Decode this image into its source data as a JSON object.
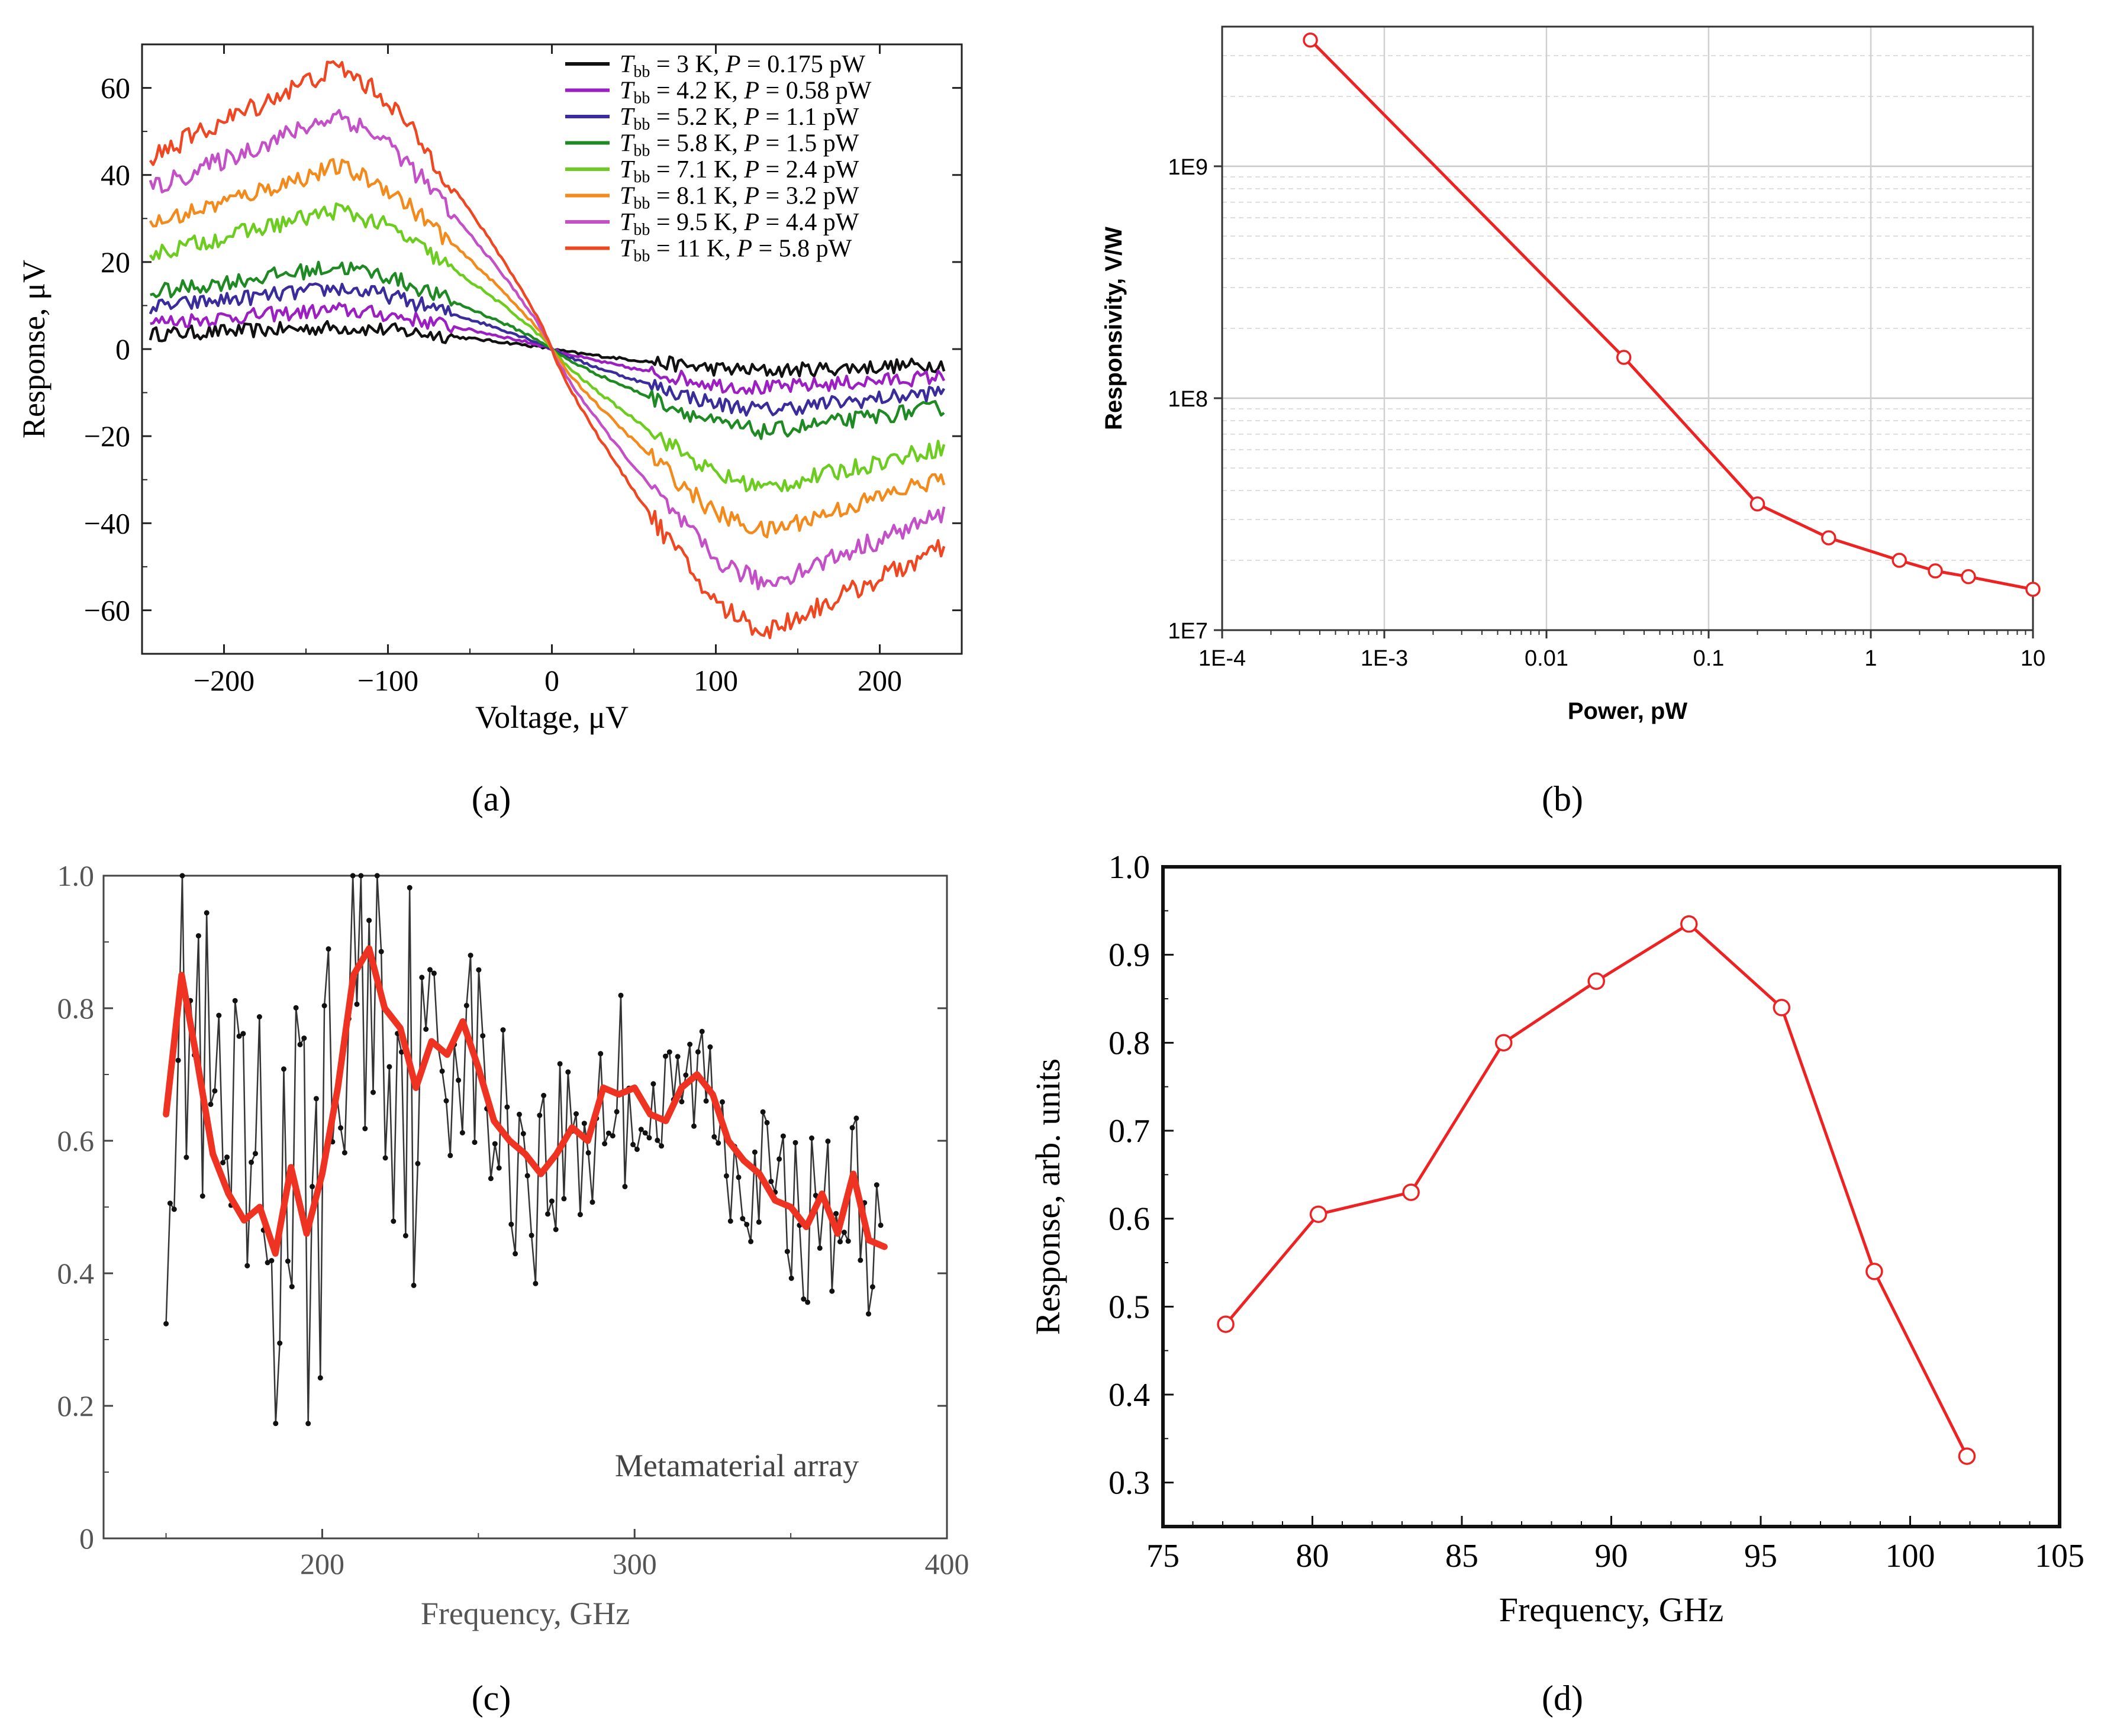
{
  "panel_labels": [
    "(a)",
    "(b)",
    "(c)",
    "(d)"
  ],
  "chart_data": [
    {
      "panel": "a",
      "type": "line",
      "xlabel": "Voltage, μV",
      "ylabel": "Response, μV",
      "xlim": [
        -250,
        250
      ],
      "ylim": [
        -70,
        70
      ],
      "xticks": [
        -200,
        -100,
        0,
        100,
        200
      ],
      "yticks": [
        -60,
        -40,
        -20,
        0,
        20,
        40,
        60
      ],
      "xtick_labels": [
        "−200",
        "−100",
        "0",
        "100",
        "200"
      ],
      "ytick_labels": [
        "−60",
        "−40",
        "−20",
        "0",
        "20",
        "40",
        "60"
      ],
      "legend_position": "top-right",
      "series": [
        {
          "name": "T_bb = 3 K, P = 0.175 pW",
          "tbb": "3 K",
          "power": "0.175 pW",
          "color": "#111111",
          "amplitude": 5
        },
        {
          "name": "T_bb = 4.2 K, P = 0.58 pW",
          "tbb": "4.2 K",
          "power": "0.58 pW",
          "color": "#9b1fc1",
          "amplitude": 9
        },
        {
          "name": "T_bb = 5.2 K, P = 1.1 pW",
          "tbb": "5.2 K",
          "power": "1.1 pW",
          "color": "#3b2c9c",
          "amplitude": 14
        },
        {
          "name": "T_bb = 5.8 K, P = 1.5 pW",
          "tbb": "5.8 K",
          "power": "1.5 pW",
          "color": "#1f8a23",
          "amplitude": 19
        },
        {
          "name": "T_bb = 7.1 K, P = 2.4 pW",
          "tbb": "7.1 K",
          "power": "2.4 pW",
          "color": "#6ccc1f",
          "amplitude": 32
        },
        {
          "name": "T_bb = 8.1 K, P = 3.2 pW",
          "tbb": "8.1 K",
          "power": "3.2 pW",
          "color": "#f28a1c",
          "amplitude": 42
        },
        {
          "name": "T_bb = 9.5 K, P = 4.4 pW",
          "tbb": "9.5 K",
          "power": "4.4 pW",
          "color": "#c450c8",
          "amplitude": 54
        },
        {
          "name": "T_bb = 11 K, P = 5.8 pW",
          "tbb": "11 K",
          "power": "5.8 pW",
          "color": "#ee4722",
          "amplitude": 65
        }
      ]
    },
    {
      "panel": "b",
      "type": "line",
      "xlabel": "Power, pW",
      "ylabel": "Responsivity, V/W",
      "xscale": "log",
      "yscale": "log",
      "xlim": [
        0.0001,
        10
      ],
      "ylim": [
        10000000,
        4000000000
      ],
      "xticks": [
        0.0001,
        0.001,
        0.01,
        0.1,
        1,
        10
      ],
      "xtick_labels": [
        "1E-4",
        "1E-3",
        "0.01",
        "0.1",
        "1",
        "10"
      ],
      "yticks": [
        10000000,
        100000000,
        1000000000
      ],
      "ytick_labels": [
        "1E7",
        "1E8",
        "1E9"
      ],
      "grid": true,
      "color": "#ee2222",
      "x": [
        0.00035,
        0.03,
        0.2,
        0.55,
        1.5,
        2.5,
        4,
        10
      ],
      "y": [
        3500000000,
        150000000,
        35000000,
        25000000,
        20000000,
        18000000,
        17000000,
        15000000
      ]
    },
    {
      "panel": "c",
      "type": "line",
      "xlabel": "Frequency, GHz",
      "ylabel": "",
      "xlim": [
        130,
        400
      ],
      "ylim": [
        0,
        1.0
      ],
      "xticks": [
        200,
        300,
        400
      ],
      "xtick_labels": [
        "200",
        "300",
        "400"
      ],
      "yticks": [
        0,
        0.2,
        0.4,
        0.6,
        0.8,
        1.0
      ],
      "ytick_labels": [
        "0",
        "0.2",
        "0.4",
        "0.6",
        "0.8",
        "1.0"
      ],
      "annotation": "Metamaterial array",
      "raw_color": "#111111",
      "smooth_color": "#ee3322",
      "smooth": {
        "x": [
          150,
          155,
          160,
          165,
          170,
          175,
          180,
          185,
          190,
          195,
          200,
          205,
          210,
          215,
          220,
          225,
          230,
          235,
          240,
          245,
          250,
          255,
          260,
          265,
          270,
          275,
          280,
          285,
          290,
          295,
          300,
          305,
          310,
          315,
          320,
          325,
          330,
          335,
          340,
          345,
          350,
          355,
          360,
          365,
          370,
          375,
          380
        ],
        "y": [
          0.64,
          0.85,
          0.72,
          0.58,
          0.52,
          0.48,
          0.5,
          0.43,
          0.56,
          0.46,
          0.55,
          0.68,
          0.85,
          0.89,
          0.8,
          0.77,
          0.68,
          0.75,
          0.73,
          0.78,
          0.71,
          0.63,
          0.6,
          0.58,
          0.55,
          0.58,
          0.62,
          0.6,
          0.68,
          0.67,
          0.68,
          0.64,
          0.63,
          0.68,
          0.7,
          0.67,
          0.6,
          0.57,
          0.55,
          0.51,
          0.5,
          0.47,
          0.52,
          0.46,
          0.55,
          0.45,
          0.44
        ]
      }
    },
    {
      "panel": "d",
      "type": "line",
      "xlabel": "Frequency, GHz",
      "ylabel": "Response, arb. units",
      "xlim": [
        75,
        105
      ],
      "ylim": [
        0.25,
        1.0
      ],
      "xticks": [
        75,
        80,
        85,
        90,
        95,
        100,
        105
      ],
      "xtick_labels": [
        "75",
        "80",
        "85",
        "90",
        "95",
        "100",
        "105"
      ],
      "yticks": [
        0.3,
        0.4,
        0.5,
        0.6,
        0.7,
        0.8,
        0.9,
        1.0
      ],
      "ytick_labels": [
        "0.3",
        "0.4",
        "0.5",
        "0.6",
        "0.7",
        "0.8",
        "0.9",
        "1.0"
      ],
      "color": "#ee2222",
      "x": [
        77.1,
        80.2,
        83.3,
        86.4,
        89.5,
        92.6,
        95.7,
        98.8,
        101.9
      ],
      "y": [
        0.48,
        0.605,
        0.63,
        0.8,
        0.87,
        0.935,
        0.84,
        0.54,
        0.33
      ]
    }
  ]
}
